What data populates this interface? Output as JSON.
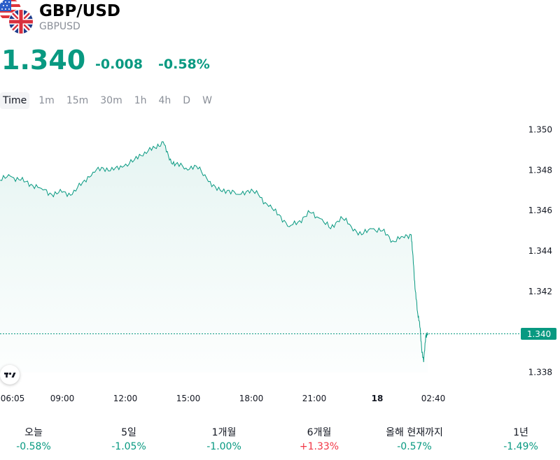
{
  "header": {
    "symbol": "GBP/USD",
    "ticker": "GBPUSD",
    "price": "1.340",
    "change": "-0.008",
    "change_pct": "-0.58%"
  },
  "tabs": [
    "Time",
    "1m",
    "15m",
    "30m",
    "1h",
    "4h",
    "D",
    "W"
  ],
  "colors": {
    "accent": "#089981",
    "negative": "#089981",
    "positive": "#f23645",
    "text": "#131722",
    "muted": "#8a8f98"
  },
  "icons": {
    "flags": "us-uk-flags-icon",
    "logo": "tradingview-logo-icon"
  },
  "chart_data": {
    "type": "area",
    "x_ticks": [
      "06:05",
      "09:00",
      "12:00",
      "15:00",
      "18:00",
      "21:00",
      "18",
      "02:40"
    ],
    "y_ticks": [
      "1.350",
      "1.348",
      "1.346",
      "1.344",
      "1.342",
      "1.340",
      "1.338"
    ],
    "ylim": [
      1.3375,
      1.3505
    ],
    "last_price_label": "1.340",
    "last_value": 1.3399,
    "x_range": [
      0,
      21
    ],
    "series": [
      {
        "x": [
          0,
          0.5,
          1,
          1.5,
          2,
          2.5,
          3,
          3.5,
          4,
          4.5,
          5,
          5.5,
          6,
          6.5,
          7,
          7.5,
          7.9,
          8.2,
          8.5,
          9,
          9.5,
          10,
          10.5,
          11,
          11.5,
          12,
          12.5,
          13,
          13.5,
          14,
          14.5,
          15,
          15.5,
          16,
          16.5,
          17,
          17.5,
          18,
          18.5,
          19,
          19.5,
          19.9,
          20.0,
          20.1,
          20.2,
          20.3,
          20.4,
          20.5,
          20.6,
          20.7
        ],
        "values": [
          1.3475,
          1.3477,
          1.3475,
          1.3473,
          1.3471,
          1.3468,
          1.3469,
          1.3468,
          1.3474,
          1.3479,
          1.3481,
          1.348,
          1.3482,
          1.3485,
          1.3489,
          1.3491,
          1.3494,
          1.3485,
          1.3483,
          1.3481,
          1.3482,
          1.3476,
          1.347,
          1.347,
          1.3468,
          1.347,
          1.3468,
          1.3462,
          1.3458,
          1.3452,
          1.3455,
          1.3459,
          1.3456,
          1.3451,
          1.3457,
          1.3452,
          1.3448,
          1.3451,
          1.345,
          1.3445,
          1.3447,
          1.3448,
          1.3434,
          1.342,
          1.341,
          1.3405,
          1.3392,
          1.3385,
          1.3398,
          1.3399
        ]
      }
    ]
  },
  "performance": [
    {
      "label": "오늘",
      "value": "-0.58%",
      "dir": "neg"
    },
    {
      "label": "5일",
      "value": "-1.05%",
      "dir": "neg"
    },
    {
      "label": "1개월",
      "value": "-1.00%",
      "dir": "neg"
    },
    {
      "label": "6개월",
      "value": "+1.33%",
      "dir": "pos"
    },
    {
      "label": "올해 현재까지",
      "value": "-0.57%",
      "dir": "neg"
    },
    {
      "label": "1년",
      "value": "-1.49%",
      "dir": "neg"
    }
  ]
}
